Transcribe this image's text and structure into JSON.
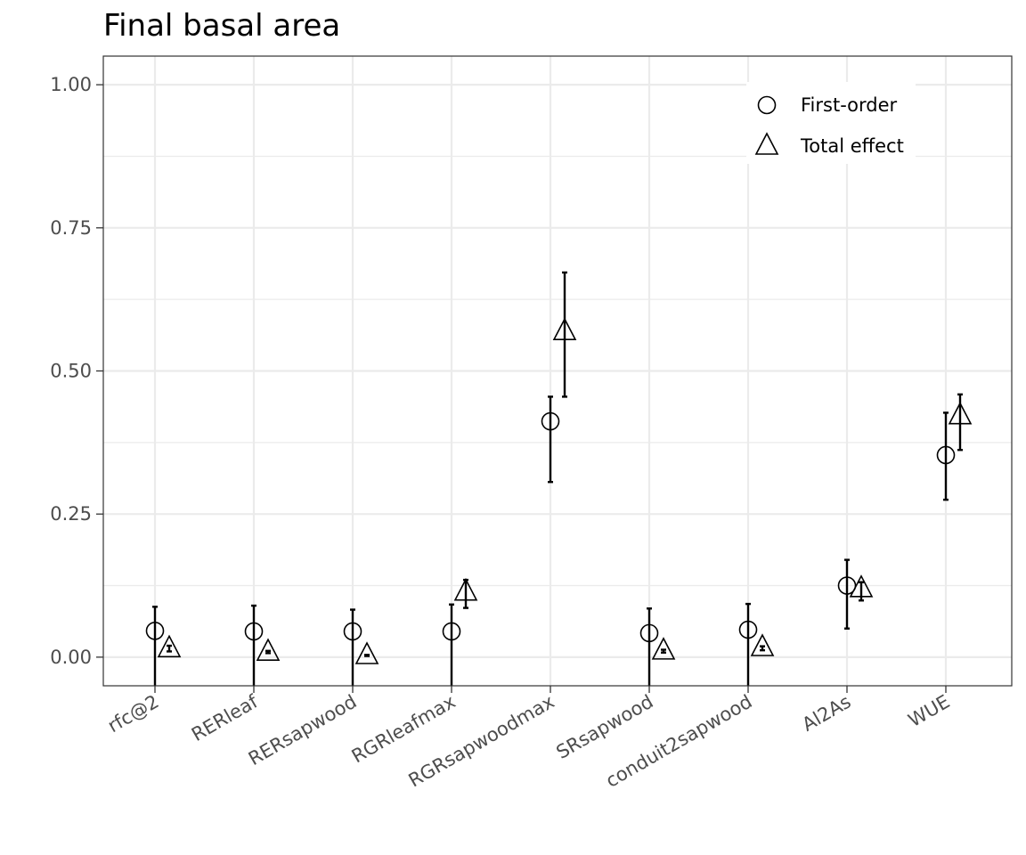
{
  "chart_data": {
    "type": "scatter",
    "title": "Final basal area",
    "xlabel": "",
    "ylabel": "",
    "ylim": [
      -0.05,
      1.05
    ],
    "yticks": [
      "0.00",
      "0.25",
      "0.50",
      "0.75",
      "1.00"
    ],
    "grid": true,
    "legend_position": "top-right",
    "categories": [
      "rfc@2",
      "RERleaf",
      "RERsapwood",
      "RGRleafmax",
      "RGRsapwoodmax",
      "SRsapwood",
      "conduit2sapwood",
      "Al2As",
      "WUE"
    ],
    "series": [
      {
        "name": "First-order",
        "marker": "circle",
        "values": [
          0.046,
          0.045,
          0.045,
          0.045,
          0.412,
          0.042,
          0.048,
          0.125,
          0.353
        ],
        "lower": [
          -0.05,
          -0.05,
          -0.05,
          -0.05,
          0.306,
          -0.05,
          -0.05,
          0.05,
          0.275
        ],
        "upper": [
          0.088,
          0.09,
          0.083,
          0.092,
          0.455,
          0.085,
          0.093,
          0.17,
          0.427
        ]
      },
      {
        "name": "Total effect",
        "marker": "triangle",
        "values": [
          0.018,
          0.012,
          0.006,
          0.117,
          0.572,
          0.014,
          0.02,
          0.123,
          0.425
        ],
        "lower": [
          0.01,
          0.007,
          0.002,
          0.086,
          0.455,
          0.008,
          0.012,
          0.099,
          0.362
        ],
        "upper": [
          0.02,
          0.011,
          0.004,
          0.135,
          0.672,
          0.013,
          0.019,
          0.131,
          0.459
        ]
      }
    ]
  }
}
